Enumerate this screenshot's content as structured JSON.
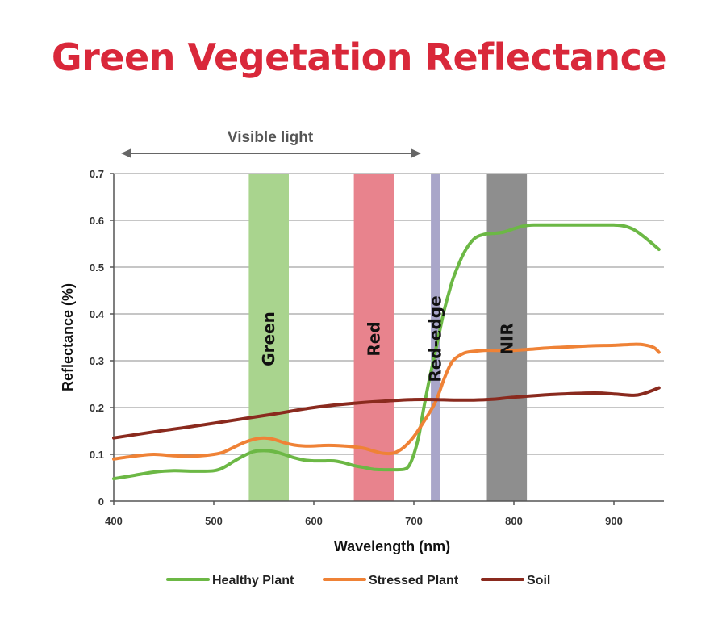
{
  "title": "Green Vegetation Reflectance",
  "chart_data": {
    "type": "line",
    "title": "Green Vegetation Reflectance",
    "xlabel": "Wavelength (nm)",
    "ylabel": "Reflectance (%)",
    "xlim": [
      400,
      950
    ],
    "ylim": [
      0,
      0.7
    ],
    "x_ticks": [
      400,
      500,
      600,
      700,
      800,
      900
    ],
    "x_tick_labels": [
      "400",
      "500",
      "600",
      "700",
      "800",
      "900"
    ],
    "y_ticks": [
      0,
      0.1,
      0.2,
      0.3,
      0.4,
      0.5,
      0.6,
      0.7
    ],
    "y_tick_labels": [
      "0",
      "0.1",
      "0.2",
      "0.3",
      "0.4",
      "0.5",
      "0.6",
      "0.7"
    ],
    "grid": "horizontal",
    "legend_position": "bottom",
    "annotation": {
      "label": "Visible light",
      "x_start": 400,
      "x_end": 700
    },
    "bands": [
      {
        "label": "Green",
        "x_start": 535,
        "x_end": 575,
        "color": "#a9d48e"
      },
      {
        "label": "Red",
        "x_start": 640,
        "x_end": 680,
        "color": "#e8838d"
      },
      {
        "label": "Red-edge",
        "x_start": 717,
        "x_end": 726,
        "color": "#a9a6c9"
      },
      {
        "label": "NIR",
        "x_start": 773,
        "x_end": 813,
        "color": "#8e8e8e"
      }
    ],
    "series": [
      {
        "name": "Healthy Plant",
        "color": "#6cb845",
        "x": [
          400,
          420,
          440,
          460,
          480,
          500,
          510,
          520,
          530,
          540,
          550,
          560,
          570,
          580,
          590,
          600,
          610,
          620,
          630,
          640,
          650,
          660,
          670,
          680,
          690,
          695,
          700,
          705,
          710,
          715,
          720,
          725,
          730,
          735,
          740,
          750,
          760,
          770,
          780,
          790,
          800,
          810,
          820,
          840,
          860,
          880,
          900,
          910,
          920,
          930,
          945
        ],
        "values": [
          0.048,
          0.055,
          0.062,
          0.065,
          0.064,
          0.065,
          0.072,
          0.085,
          0.097,
          0.106,
          0.108,
          0.106,
          0.1,
          0.093,
          0.088,
          0.086,
          0.086,
          0.086,
          0.082,
          0.076,
          0.072,
          0.068,
          0.067,
          0.067,
          0.068,
          0.075,
          0.1,
          0.14,
          0.2,
          0.255,
          0.305,
          0.355,
          0.405,
          0.445,
          0.48,
          0.53,
          0.56,
          0.57,
          0.572,
          0.575,
          0.582,
          0.588,
          0.59,
          0.59,
          0.59,
          0.59,
          0.59,
          0.588,
          0.58,
          0.565,
          0.538
        ]
      },
      {
        "name": "Stressed Plant",
        "color": "#ef8236",
        "x": [
          400,
          420,
          440,
          460,
          480,
          500,
          510,
          520,
          530,
          540,
          550,
          560,
          570,
          580,
          590,
          600,
          610,
          620,
          630,
          640,
          650,
          660,
          670,
          680,
          690,
          700,
          710,
          720,
          725,
          730,
          735,
          740,
          750,
          760,
          770,
          780,
          790,
          800,
          820,
          840,
          860,
          880,
          900,
          920,
          930,
          940,
          945
        ],
        "values": [
          0.09,
          0.096,
          0.1,
          0.097,
          0.096,
          0.1,
          0.105,
          0.115,
          0.125,
          0.132,
          0.135,
          0.132,
          0.125,
          0.12,
          0.118,
          0.118,
          0.119,
          0.119,
          0.118,
          0.116,
          0.113,
          0.107,
          0.102,
          0.103,
          0.115,
          0.138,
          0.17,
          0.205,
          0.23,
          0.26,
          0.285,
          0.302,
          0.316,
          0.32,
          0.322,
          0.322,
          0.322,
          0.322,
          0.325,
          0.328,
          0.33,
          0.332,
          0.333,
          0.335,
          0.334,
          0.328,
          0.318
        ]
      },
      {
        "name": "Soil",
        "color": "#8a2a1e",
        "x": [
          400,
          440,
          480,
          520,
          560,
          600,
          640,
          680,
          700,
          720,
          740,
          760,
          780,
          800,
          840,
          880,
          900,
          920,
          930,
          945
        ],
        "values": [
          0.135,
          0.148,
          0.16,
          0.173,
          0.186,
          0.2,
          0.209,
          0.215,
          0.217,
          0.217,
          0.216,
          0.216,
          0.218,
          0.222,
          0.228,
          0.231,
          0.229,
          0.226,
          0.23,
          0.242
        ]
      }
    ]
  }
}
